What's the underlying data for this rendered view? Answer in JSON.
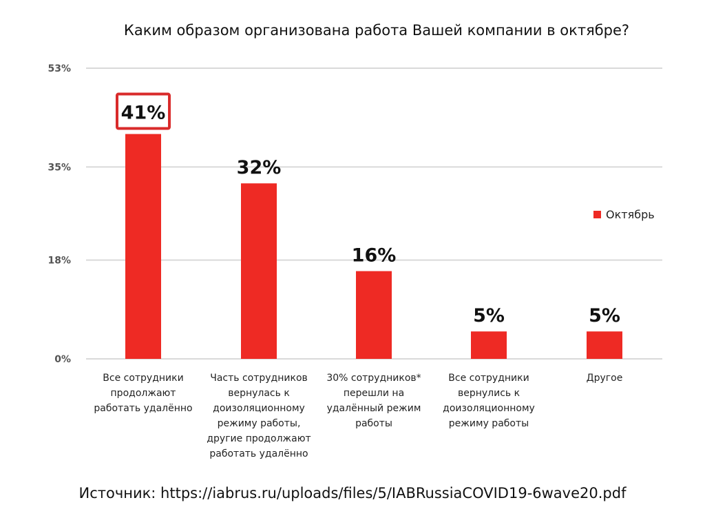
{
  "chart_data": {
    "type": "bar",
    "title": "Каким образом организована работа Вашей компании в октябре?",
    "xlabel": "",
    "ylabel": "",
    "ylim": [
      0,
      53
    ],
    "yticks": [
      0,
      18,
      35,
      53
    ],
    "ytick_labels": [
      "0%",
      "18%",
      "35%",
      "53%"
    ],
    "grid": true,
    "legend_position": "right",
    "categories": [
      "Все сотрудники продолжают работать удалённо",
      "Часть сотрудников вернулась к доизоляционному режиму работы, другие продолжают работать удалённо",
      "30% сотрудников* перешли на удалённый режим работы",
      "Все сотрудники вернулись к доизоляционному режиму работы",
      "Другое"
    ],
    "category_lines": [
      [
        "Все сотрудники",
        "продолжают",
        "работать удалённо"
      ],
      [
        "Часть сотрудников",
        "вернулась к",
        "доизоляционному",
        "режиму работы,",
        "другие продолжают",
        "работать удалённо"
      ],
      [
        "30% сотрудников*",
        "перешли на",
        "удалённый режим",
        "работы"
      ],
      [
        "Все сотрудники",
        "вернулись к",
        "доизоляционному",
        "режиму работы"
      ],
      [
        "Другое"
      ]
    ],
    "series": [
      {
        "name": "Октябрь",
        "color": "#ee2a24",
        "values": [
          41,
          32,
          16,
          5,
          5
        ],
        "value_labels": [
          "41%",
          "32%",
          "16%",
          "5%",
          "5%"
        ]
      }
    ],
    "highlighted_index": 0,
    "highlight_color": "#d92b2b"
  },
  "source": "Источник: https://iabrus.ru/uploads/files/5/IABRussiaCOVID19-6wave20.pdf"
}
